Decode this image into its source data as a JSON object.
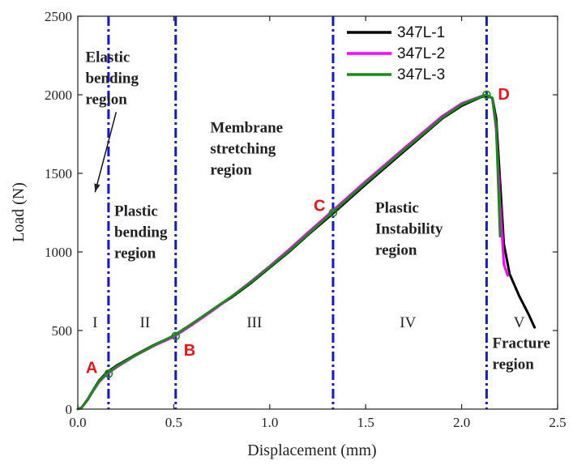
{
  "chart_data": {
    "type": "line",
    "xlabel": "Displacement (mm)",
    "ylabel": "Load (N)",
    "xlim": [
      0,
      2.5
    ],
    "ylim": [
      0,
      2500
    ],
    "xticks": [
      0,
      0.5,
      1.0,
      1.5,
      2.0,
      2.5
    ],
    "xtick_labels": [
      "0.0",
      "0.5",
      "1.0",
      "1.5",
      "2.0",
      "2.5"
    ],
    "yticks": [
      0,
      500,
      1000,
      1500,
      2000,
      2500
    ],
    "ytick_labels": [
      "0",
      "500",
      "1000",
      "1500",
      "2000",
      "2500"
    ],
    "legend_position": "top-right",
    "series": [
      {
        "name": "347L-1",
        "color": "#000000",
        "x": [
          0,
          0.02,
          0.05,
          0.08,
          0.11,
          0.14,
          0.16,
          0.2,
          0.3,
          0.4,
          0.5,
          0.6,
          0.7,
          0.8,
          0.9,
          1.0,
          1.1,
          1.2,
          1.33,
          1.5,
          1.7,
          1.9,
          2.0,
          2.1,
          2.13,
          2.16,
          2.18,
          2.2,
          2.22,
          2.25,
          2.3,
          2.35,
          2.38
        ],
        "y": [
          0,
          10,
          60,
          120,
          180,
          220,
          240,
          275,
          345,
          410,
          465,
          545,
          630,
          710,
          800,
          900,
          1000,
          1110,
          1245,
          1430,
          1640,
          1850,
          1930,
          1985,
          1995,
          1980,
          1850,
          1450,
          1050,
          860,
          720,
          600,
          520
        ]
      },
      {
        "name": "347L-2",
        "color": "#ff00ff",
        "x": [
          0,
          0.02,
          0.05,
          0.08,
          0.11,
          0.14,
          0.16,
          0.2,
          0.3,
          0.4,
          0.5,
          0.6,
          0.7,
          0.8,
          0.9,
          1.0,
          1.1,
          1.2,
          1.33,
          1.5,
          1.7,
          1.9,
          2.0,
          2.1,
          2.13,
          2.16,
          2.18,
          2.2,
          2.22,
          2.24
        ],
        "y": [
          0,
          10,
          55,
          115,
          170,
          210,
          230,
          265,
          340,
          405,
          460,
          540,
          625,
          715,
          810,
          910,
          1015,
          1125,
          1265,
          1450,
          1660,
          1865,
          1945,
          1990,
          2000,
          1975,
          1780,
          1300,
          920,
          850
        ]
      },
      {
        "name": "347L-3",
        "color": "#1a8a1a",
        "x": [
          0,
          0.02,
          0.05,
          0.08,
          0.11,
          0.14,
          0.16,
          0.2,
          0.3,
          0.4,
          0.5,
          0.6,
          0.7,
          0.8,
          0.9,
          1.0,
          1.1,
          1.2,
          1.33,
          1.5,
          1.7,
          1.9,
          2.0,
          2.1,
          2.13,
          2.16,
          2.18,
          2.2
        ],
        "y": [
          0,
          10,
          58,
          118,
          175,
          215,
          235,
          270,
          342,
          408,
          468,
          548,
          632,
          715,
          805,
          905,
          1005,
          1115,
          1255,
          1440,
          1650,
          1855,
          1938,
          1988,
          2000,
          1978,
          1800,
          1100
        ]
      }
    ],
    "markers": [
      {
        "label": "A",
        "x": 0.16,
        "y": 225
      },
      {
        "label": "B",
        "x": 0.51,
        "y": 465
      },
      {
        "label": "C",
        "x": 1.33,
        "y": 1250
      },
      {
        "label": "D",
        "x": 2.13,
        "y": 2000
      }
    ],
    "vlines": [
      0.16,
      0.51,
      1.33,
      2.13
    ],
    "vline_color": "#1515e0",
    "region_numerals": [
      {
        "label": "I",
        "x": 0.09,
        "y": 520
      },
      {
        "label": "II",
        "x": 0.35,
        "y": 520
      },
      {
        "label": "III",
        "x": 0.92,
        "y": 520
      },
      {
        "label": "IV",
        "x": 1.72,
        "y": 520
      },
      {
        "label": "V",
        "x": 2.3,
        "y": 520
      }
    ],
    "region_labels": [
      {
        "lines": [
          "Elastic",
          "bending",
          "region"
        ],
        "x": 0.04,
        "y": 2210
      },
      {
        "lines": [
          "Plastic",
          "bending",
          "region"
        ],
        "x": 0.19,
        "y": 1230
      },
      {
        "lines": [
          "Membrane",
          "stretching",
          "region"
        ],
        "x": 0.69,
        "y": 1760
      },
      {
        "lines": [
          "Plastic",
          "Instability",
          "region"
        ],
        "x": 1.55,
        "y": 1250
      },
      {
        "lines": [
          "Fracture",
          "region"
        ],
        "x": 2.16,
        "y": 390
      }
    ]
  }
}
